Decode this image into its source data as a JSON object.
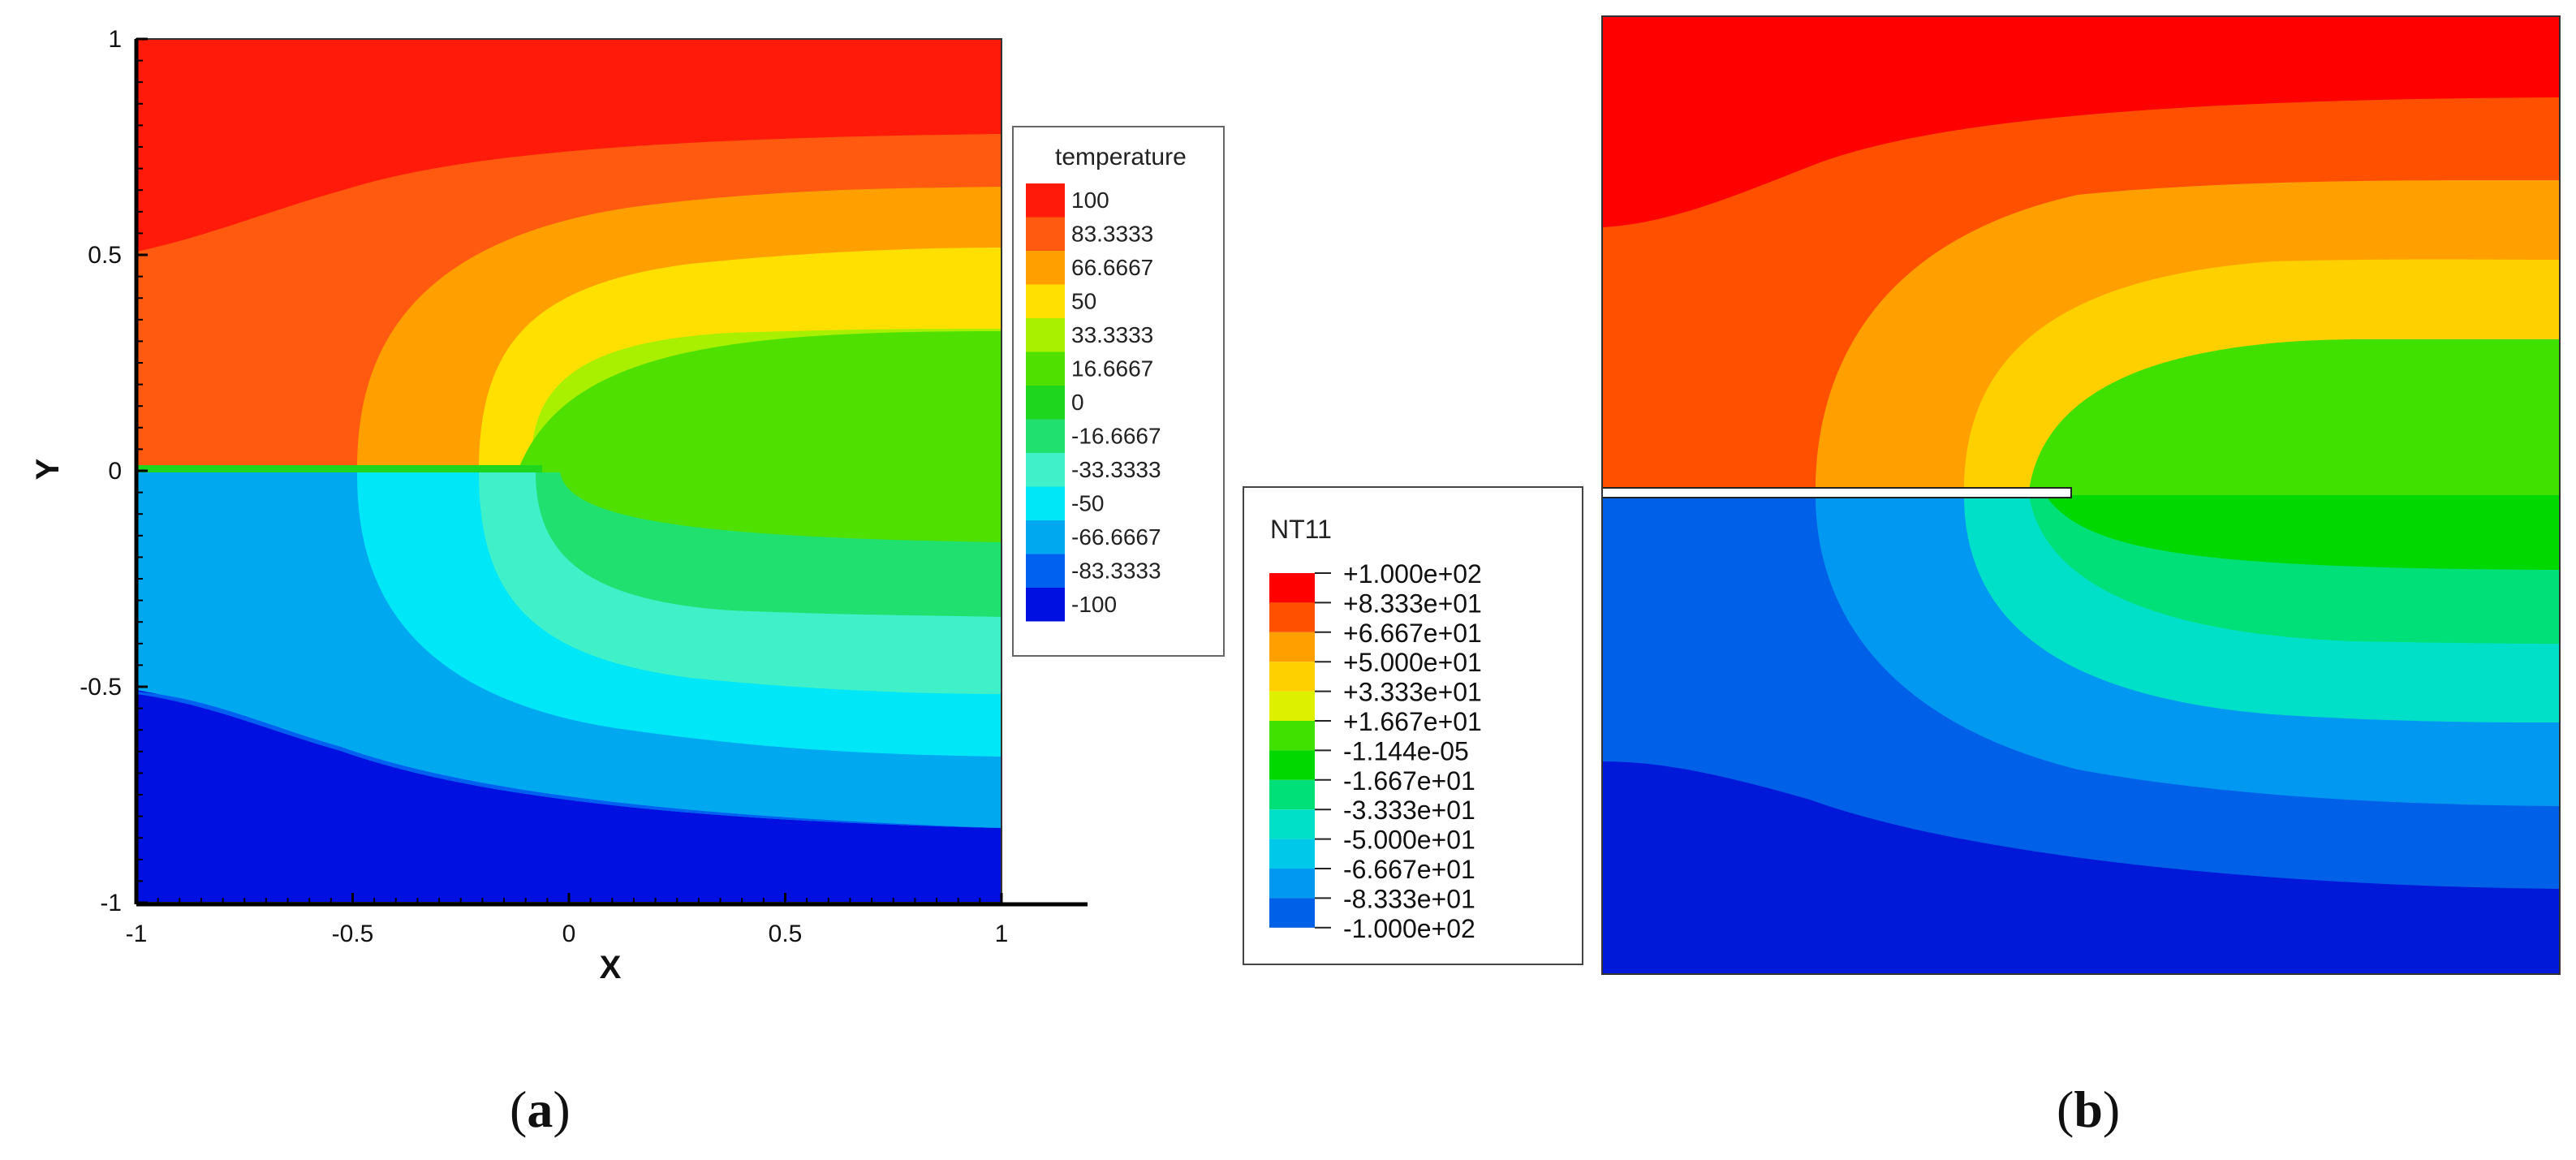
{
  "panels": {
    "a": {
      "caption": "a",
      "legend_title": "temperature",
      "legend_levels": [
        "100",
        "83.3333",
        "66.6667",
        "50",
        "33.3333",
        "16.6667",
        "0",
        "-16.6667",
        "-33.3333",
        "-50",
        "-66.6667",
        "-83.3333",
        "-100"
      ],
      "xlabel": "X",
      "ylabel": "Y",
      "xticks": [
        "-1",
        "-0.5",
        "0",
        "0.5",
        "1"
      ],
      "yticks": [
        "1",
        "0.5",
        "0",
        "-0.5",
        "-1"
      ]
    },
    "b": {
      "caption": "b",
      "legend_title": "NT11",
      "legend_levels": [
        "+1.000e+02",
        "+8.333e+01",
        "+6.667e+01",
        "+5.000e+01",
        "+3.333e+01",
        "+1.667e+01",
        "-1.144e-05",
        "-1.667e+01",
        "-3.333e+01",
        "-5.000e+01",
        "-6.667e+01",
        "-8.333e+01",
        "-1.000e+02"
      ]
    }
  },
  "colors": {
    "a": [
      "#ff1a0a",
      "#ff5a10",
      "#ffa000",
      "#ffe000",
      "#a8f000",
      "#50e000",
      "#1ed61e",
      "#20e070",
      "#40f0c8",
      "#00e8f8",
      "#00a8f0",
      "#0060f0",
      "#0010e0"
    ],
    "b": [
      "#ff0000",
      "#ff5000",
      "#ffa000",
      "#ffd000",
      "#ddf000",
      "#40e000",
      "#00d800",
      "#00e078",
      "#00e0c8",
      "#00c8e8",
      "#0098f0",
      "#0060e8",
      "#0018d8"
    ]
  },
  "chart_data": [
    {
      "type": "heatmap",
      "title": "",
      "xlabel": "X",
      "ylabel": "Y",
      "xlim": [
        -1,
        1
      ],
      "ylim": [
        -1,
        1
      ],
      "colorbar_label": "temperature",
      "levels": [
        100,
        83.3333,
        66.6667,
        50,
        33.3333,
        16.6667,
        0,
        -16.6667,
        -33.3333,
        -50,
        -66.6667,
        -83.3333,
        -100
      ],
      "crack": {
        "x_start": -1,
        "x_end": 0,
        "y": 0
      }
    },
    {
      "type": "heatmap",
      "title": "",
      "colorbar_label": "NT11",
      "levels": [
        100,
        83.33,
        66.67,
        50,
        33.33,
        16.67,
        -1.144e-05,
        -16.67,
        -33.33,
        -50,
        -66.67,
        -83.33,
        -100
      ]
    }
  ]
}
